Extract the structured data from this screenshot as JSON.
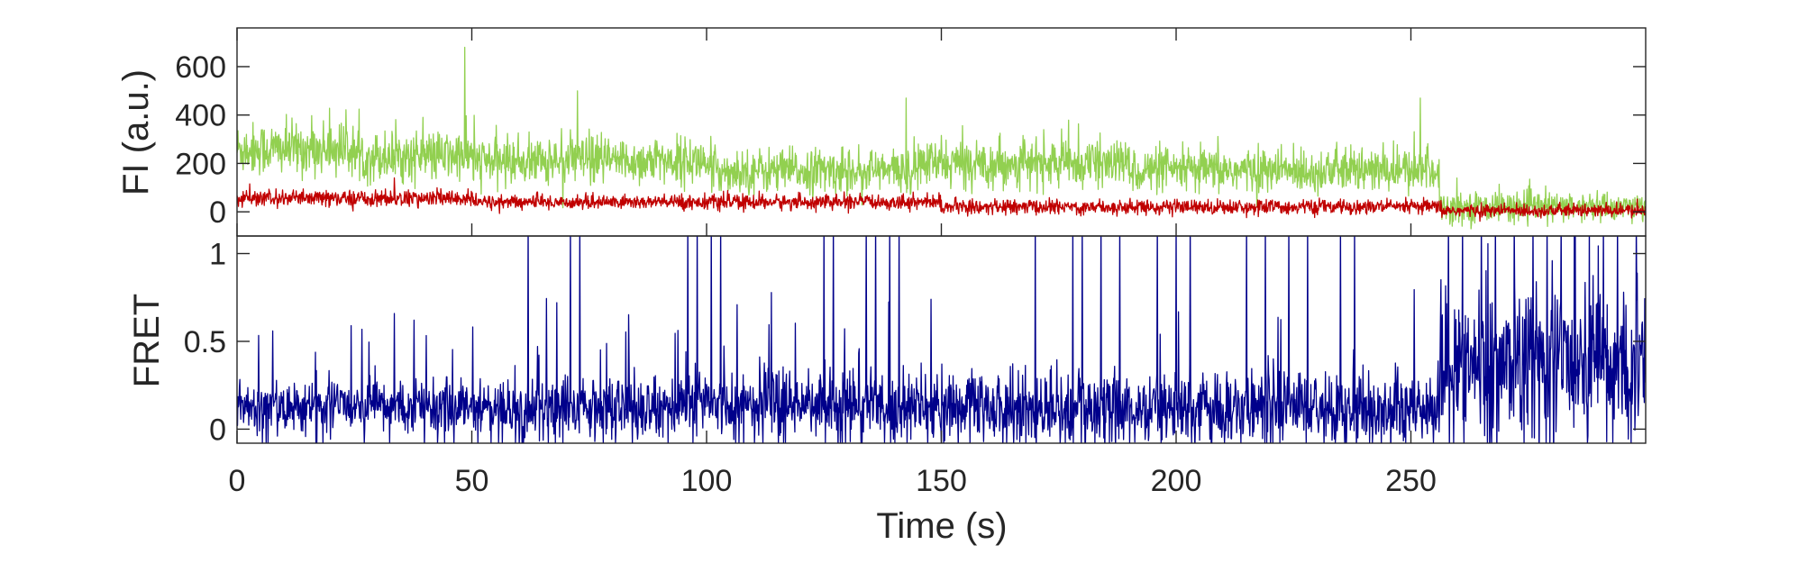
{
  "chart_data": [
    {
      "type": "line",
      "panel": "top",
      "ylabel": "FI (a.u.)",
      "xlabel": "",
      "xlim": [
        0,
        300
      ],
      "ylim": [
        -100,
        760
      ],
      "yticks": [
        0,
        200,
        400,
        600
      ],
      "ytick_labels": [
        "0",
        "200",
        "400",
        "600"
      ],
      "grid": false,
      "series": [
        {
          "color": "#92d050",
          "role": "donor (green)",
          "segments": [
            {
              "x_range": [
                0,
                25
              ],
              "mean": 260,
              "noise": 90
            },
            {
              "x_range": [
                25,
                50
              ],
              "mean": 230,
              "noise": 85
            },
            {
              "x_range": [
                50,
                100
              ],
              "mean": 210,
              "noise": 80
            },
            {
              "x_range": [
                100,
                145
              ],
              "mean": 170,
              "noise": 75
            },
            {
              "x_range": [
                145,
                190
              ],
              "mean": 200,
              "noise": 80
            },
            {
              "x_range": [
                190,
                256
              ],
              "mean": 170,
              "noise": 75
            },
            {
              "x_range": [
                256,
                300
              ],
              "mean": 20,
              "noise": 50
            }
          ],
          "spikes": [
            {
              "x": 48.5,
              "y": 680
            },
            {
              "x": 72.5,
              "y": 500
            },
            {
              "x": 142.5,
              "y": 470
            },
            {
              "x": 252,
              "y": 470
            }
          ]
        },
        {
          "color": "#c00000",
          "role": "acceptor (red)",
          "segments": [
            {
              "x_range": [
                0,
                50
              ],
              "mean": 55,
              "noise": 28
            },
            {
              "x_range": [
                50,
                150
              ],
              "mean": 40,
              "noise": 25
            },
            {
              "x_range": [
                150,
                256
              ],
              "mean": 20,
              "noise": 25
            },
            {
              "x_range": [
                256,
                300
              ],
              "mean": 5,
              "noise": 22
            }
          ],
          "spikes": [
            {
              "x": 33.5,
              "y": 140
            }
          ]
        }
      ]
    },
    {
      "type": "line",
      "panel": "bottom",
      "ylabel": "FRET",
      "xlabel": "Time (s)",
      "xlim": [
        0,
        300
      ],
      "ylim": [
        -0.08,
        1.1
      ],
      "yticks": [
        0,
        0.5,
        1
      ],
      "ytick_labels": [
        "0",
        "0.5",
        "1"
      ],
      "xticks": [
        0,
        50,
        100,
        150,
        200,
        250
      ],
      "xtick_labels": [
        "0",
        "50",
        "100",
        "150",
        "200",
        "250"
      ],
      "grid": false,
      "series": [
        {
          "color": "#00008b",
          "role": "FRET efficiency",
          "segments": [
            {
              "x_range": [
                0,
                60
              ],
              "mean": 0.13,
              "noise": 0.1
            },
            {
              "x_range": [
                60,
                140
              ],
              "mean": 0.14,
              "noise": 0.13
            },
            {
              "x_range": [
                140,
                256
              ],
              "mean": 0.12,
              "noise": 0.14
            },
            {
              "x_range": [
                256,
                300
              ],
              "mean": 0.35,
              "noise": 0.3
            }
          ],
          "spikes_to_top_x": [
            62,
            71,
            73,
            96,
            98,
            101,
            103,
            125,
            127,
            134,
            136,
            139,
            141,
            170,
            178,
            180,
            184,
            188,
            196,
            200,
            203,
            215,
            219,
            224,
            228,
            235,
            238,
            258,
            261,
            265,
            268,
            272,
            276,
            279,
            282,
            285,
            288,
            291,
            294,
            298
          ]
        }
      ]
    }
  ]
}
